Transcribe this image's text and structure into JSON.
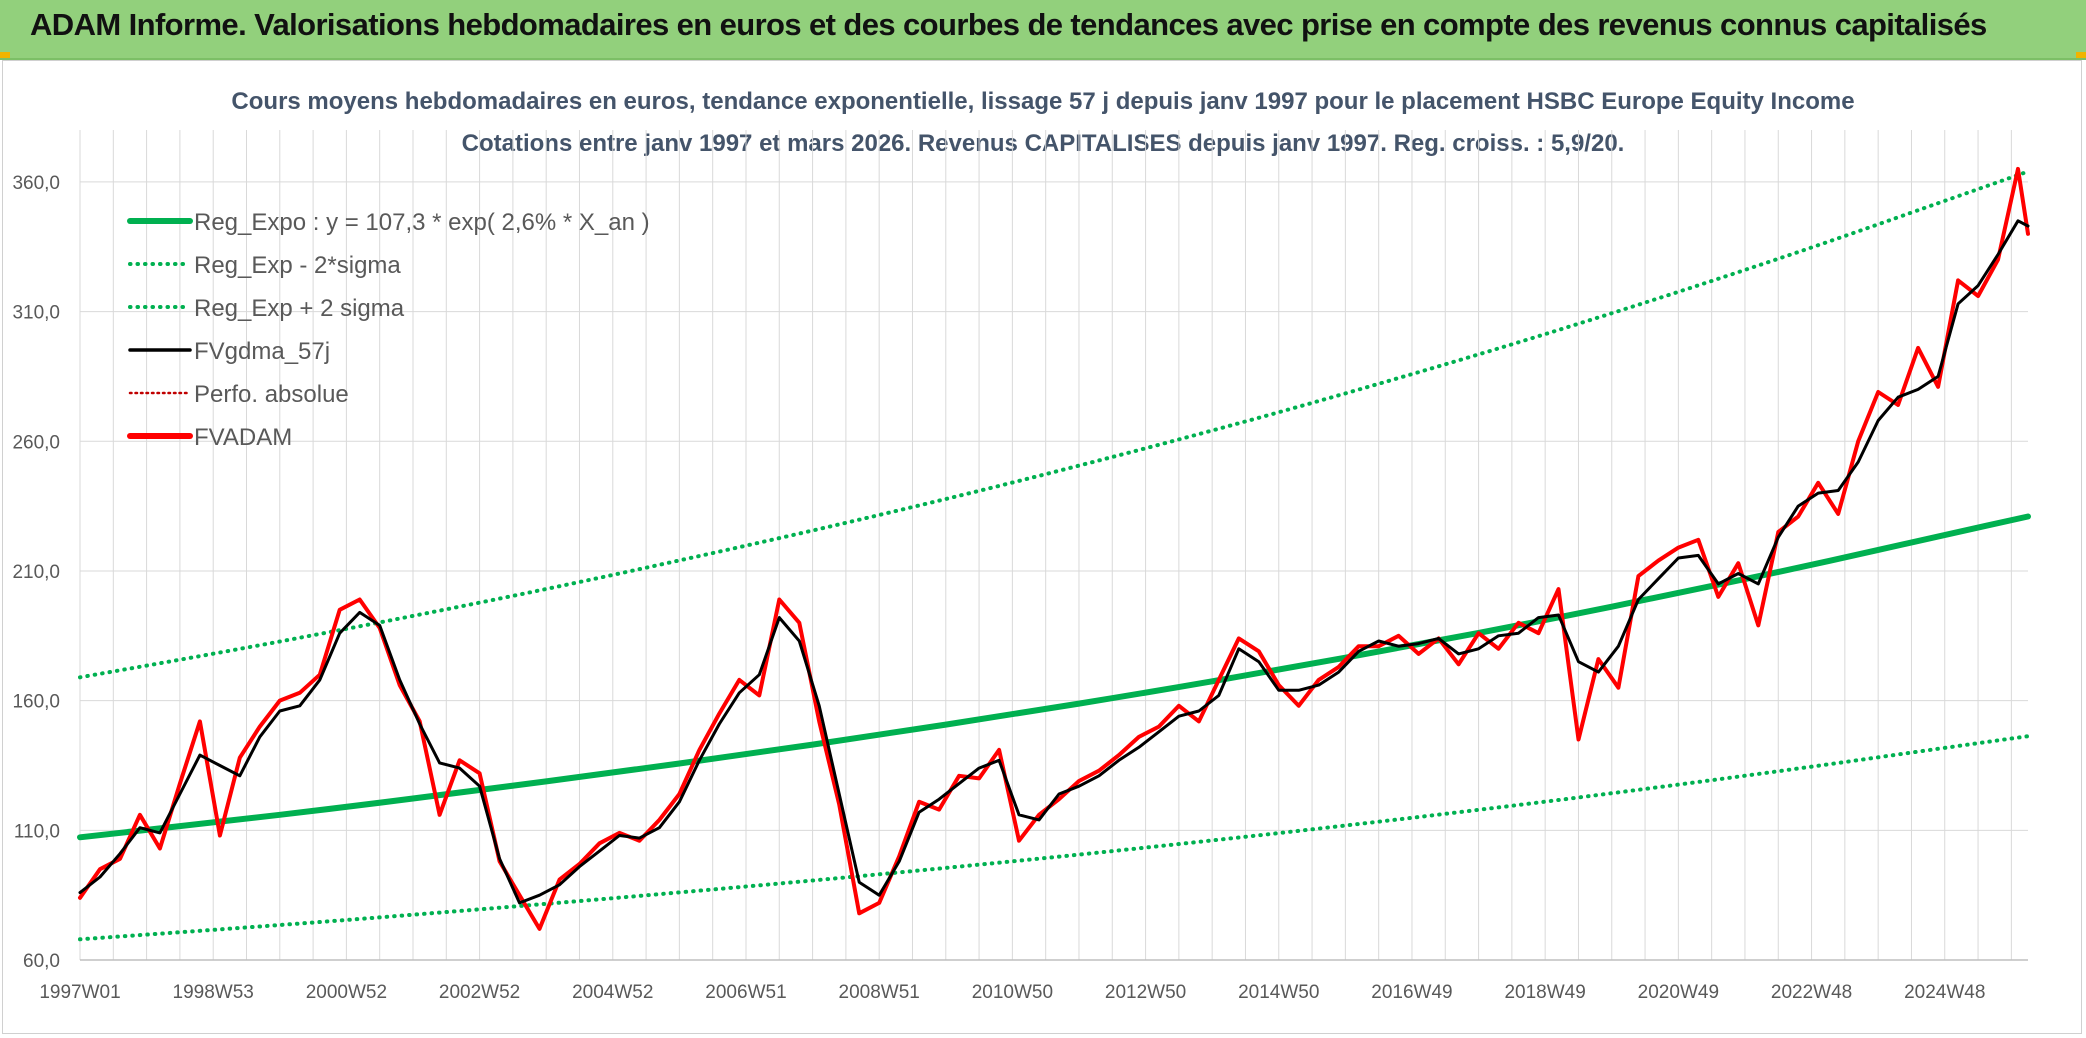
{
  "banner": {
    "title": "ADAM Informe. Valorisations hebdomadaires en euros et des courbes de tendances avec prise en compte des revenus connus capitalisés"
  },
  "chart_data": {
    "type": "line",
    "title": [
      "Cours moyens hebdomadaires en euros, tendance exponentielle, lissage 57 j depuis janv 1997 pour le placement HSBC Europe Equity Income",
      "Cotations entre janv 1997 et mars 2026. Revenus CAPITALISES depuis janv 1997. Reg. croiss. : 5,9/20."
    ],
    "xlabel": "",
    "ylabel": "",
    "x_range": [
      1997.0,
      2026.25
    ],
    "ylim": [
      60,
      380
    ],
    "y_ticks": [
      60,
      110,
      160,
      210,
      260,
      310,
      360
    ],
    "y_tick_labels": [
      "60,0",
      "110,0",
      "160,0",
      "210,0",
      "260,0",
      "310,0",
      "360,0"
    ],
    "x_ticks": [
      1997.0,
      1999.0,
      2001.0,
      2003.0,
      2005.0,
      2007.0,
      2009.0,
      2011.0,
      2013.0,
      2015.0,
      2017.0,
      2019.0,
      2021.0,
      2023.0,
      2025.0
    ],
    "x_tick_labels": [
      "1997W01",
      "1998W53",
      "2000W52",
      "2002W52",
      "2004W52",
      "2006W51",
      "2008W51",
      "2010W50",
      "2012W50",
      "2014W50",
      "2016W49",
      "2018W49",
      "2020W49",
      "2022W48",
      "2024W48"
    ],
    "grid": true,
    "legend_position": "top-left",
    "colors": {
      "reg_expo": "#00b050",
      "band": "#00b050",
      "fvgdma": "#000000",
      "perfo": "#c00000",
      "fvadam": "#ff0000",
      "grid": "#d9d9d9",
      "axis": "#bfbfbf"
    },
    "legend": [
      {
        "id": "reg_expo",
        "label": "Reg_Expo : y = 107,3 * exp( 2,6% *  X_an )",
        "style": "thick"
      },
      {
        "id": "band_low",
        "label": "Reg_Exp - 2*sigma",
        "style": "dotted"
      },
      {
        "id": "band_high",
        "label": "Reg_Exp + 2 sigma",
        "style": "dotted"
      },
      {
        "id": "fvgdma",
        "label": "FVgdma_57j",
        "style": "solid"
      },
      {
        "id": "perfo",
        "label": "Perfo. absolue",
        "style": "dotted"
      },
      {
        "id": "fvadam",
        "label": "FVADAM",
        "style": "thick"
      }
    ],
    "series": [
      {
        "name": "Reg_Expo",
        "x": [
          1997.0,
          1999.0,
          2001.0,
          2003.0,
          2005.0,
          2007.0,
          2009.0,
          2011.0,
          2013.0,
          2015.0,
          2017.0,
          2019.0,
          2021.0,
          2023.0,
          2025.0,
          2026.25
        ],
        "y": [
          107.3,
          113.0,
          119.0,
          125.5,
          132.2,
          139.3,
          146.8,
          154.7,
          163.0,
          171.9,
          181.2,
          191.0,
          201.4,
          212.3,
          223.9,
          231.0
        ]
      },
      {
        "name": "Reg_Exp - 2*sigma",
        "x": [
          1997.0,
          1999.0,
          2001.0,
          2003.0,
          2005.0,
          2007.0,
          2009.0,
          2011.0,
          2013.0,
          2015.0,
          2017.0,
          2019.0,
          2021.0,
          2023.0,
          2025.0,
          2026.25
        ],
        "y": [
          68.0,
          71.6,
          75.4,
          79.5,
          83.8,
          88.3,
          93.0,
          98.0,
          103.3,
          108.9,
          114.8,
          121.0,
          127.6,
          134.5,
          141.8,
          146.3
        ]
      },
      {
        "name": "Reg_Exp + 2 sigma",
        "x": [
          1997.0,
          1999.0,
          2001.0,
          2003.0,
          2005.0,
          2007.0,
          2009.0,
          2011.0,
          2013.0,
          2015.0,
          2017.0,
          2019.0,
          2021.0,
          2023.0,
          2025.0,
          2026.25
        ],
        "y": [
          169.0,
          178.0,
          187.6,
          197.7,
          208.4,
          219.7,
          231.5,
          244.0,
          257.2,
          271.1,
          285.8,
          301.2,
          317.5,
          334.6,
          352.7,
          364.0
        ]
      },
      {
        "name": "FVgdma_57j",
        "x": [
          1997.0,
          1997.3,
          1997.6,
          1997.9,
          1998.2,
          1998.5,
          1998.8,
          1999.1,
          1999.4,
          1999.7,
          2000.0,
          2000.3,
          2000.6,
          2000.9,
          2001.2,
          2001.5,
          2001.8,
          2002.1,
          2002.4,
          2002.7,
          2003.0,
          2003.3,
          2003.6,
          2003.9,
          2004.2,
          2004.5,
          2004.8,
          2005.1,
          2005.4,
          2005.7,
          2006.0,
          2006.3,
          2006.6,
          2006.9,
          2007.2,
          2007.5,
          2007.8,
          2008.1,
          2008.4,
          2008.7,
          2009.0,
          2009.3,
          2009.6,
          2009.9,
          2010.2,
          2010.5,
          2010.8,
          2011.1,
          2011.4,
          2011.7,
          2012.0,
          2012.3,
          2012.6,
          2012.9,
          2013.2,
          2013.5,
          2013.8,
          2014.1,
          2014.4,
          2014.7,
          2015.0,
          2015.3,
          2015.6,
          2015.9,
          2016.2,
          2016.5,
          2016.8,
          2017.1,
          2017.4,
          2017.7,
          2018.0,
          2018.3,
          2018.6,
          2018.9,
          2019.2,
          2019.5,
          2019.8,
          2020.1,
          2020.4,
          2020.7,
          2021.0,
          2021.3,
          2021.6,
          2021.9,
          2022.2,
          2022.5,
          2022.8,
          2023.1,
          2023.4,
          2023.7,
          2024.0,
          2024.3,
          2024.6,
          2024.9,
          2025.2,
          2025.5,
          2025.8,
          2026.1,
          2026.25
        ],
        "y": [
          86,
          92,
          101,
          111,
          109,
          124,
          139,
          135,
          131,
          146,
          156,
          158,
          168,
          186,
          194,
          189,
          168,
          151,
          136,
          134,
          127,
          99,
          82,
          85,
          89,
          96,
          102,
          108,
          107,
          111,
          121,
          137,
          151,
          163,
          170,
          192,
          183,
          158,
          124,
          90,
          85,
          98,
          117,
          122,
          128,
          134,
          137,
          116,
          114,
          124,
          127,
          131,
          137,
          142,
          148,
          154,
          156,
          162,
          180,
          175,
          164,
          164,
          166,
          171,
          179,
          183,
          181,
          182,
          184,
          178,
          180,
          185,
          186,
          192,
          193,
          175,
          171,
          181,
          199,
          207,
          215,
          216,
          205,
          209,
          205,
          223,
          235,
          240,
          241,
          252,
          268,
          277,
          280,
          285,
          313,
          320,
          332,
          345,
          343
        ]
      },
      {
        "name": "FVADAM",
        "x": [
          1997.0,
          1997.3,
          1997.6,
          1997.9,
          1998.2,
          1998.5,
          1998.8,
          1999.1,
          1999.4,
          1999.7,
          2000.0,
          2000.3,
          2000.6,
          2000.9,
          2001.2,
          2001.5,
          2001.8,
          2002.1,
          2002.4,
          2002.7,
          2003.0,
          2003.3,
          2003.6,
          2003.9,
          2004.2,
          2004.5,
          2004.8,
          2005.1,
          2005.4,
          2005.7,
          2006.0,
          2006.3,
          2006.6,
          2006.9,
          2007.2,
          2007.5,
          2007.8,
          2008.1,
          2008.4,
          2008.7,
          2009.0,
          2009.3,
          2009.6,
          2009.9,
          2010.2,
          2010.5,
          2010.8,
          2011.1,
          2011.4,
          2011.7,
          2012.0,
          2012.3,
          2012.6,
          2012.9,
          2013.2,
          2013.5,
          2013.8,
          2014.1,
          2014.4,
          2014.7,
          2015.0,
          2015.3,
          2015.6,
          2015.9,
          2016.2,
          2016.5,
          2016.8,
          2017.1,
          2017.4,
          2017.7,
          2018.0,
          2018.3,
          2018.6,
          2018.9,
          2019.2,
          2019.5,
          2019.8,
          2020.1,
          2020.4,
          2020.7,
          2021.0,
          2021.3,
          2021.6,
          2021.9,
          2022.2,
          2022.5,
          2022.8,
          2023.1,
          2023.4,
          2023.7,
          2024.0,
          2024.3,
          2024.6,
          2024.9,
          2025.2,
          2025.5,
          2025.8,
          2026.1,
          2026.25
        ],
        "y": [
          84,
          95,
          99,
          116,
          103,
          128,
          152,
          108,
          138,
          150,
          160,
          163,
          170,
          195,
          199,
          188,
          166,
          152,
          116,
          137,
          132,
          98,
          85,
          72,
          91,
          97,
          105,
          109,
          106,
          114,
          124,
          141,
          155,
          168,
          162,
          199,
          190,
          152,
          120,
          78,
          82,
          100,
          121,
          118,
          131,
          130,
          141,
          106,
          116,
          122,
          129,
          133,
          139,
          146,
          150,
          158,
          152,
          168,
          184,
          179,
          166,
          158,
          168,
          173,
          181,
          181,
          185,
          178,
          184,
          174,
          186,
          180,
          190,
          186,
          203,
          145,
          176,
          165,
          208,
          214,
          219,
          222,
          200,
          213,
          189,
          225,
          231,
          244,
          232,
          260,
          279,
          274,
          296,
          281,
          322,
          316,
          330,
          365,
          340
        ]
      }
    ]
  }
}
